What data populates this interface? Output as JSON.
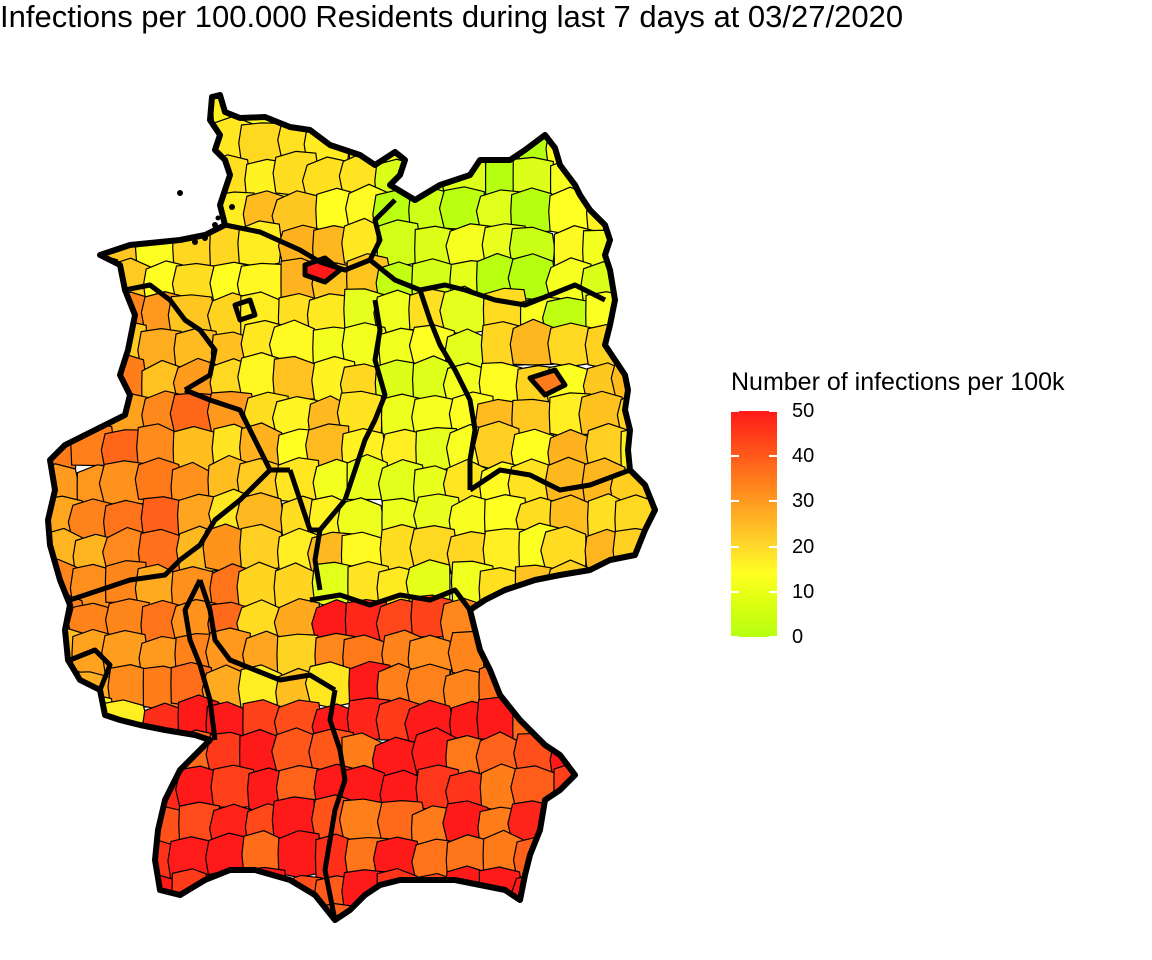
{
  "title": "Infections per 100.000 Residents during last 7 days at 03/27/2020",
  "legend": {
    "title": "Number of infections per 100k",
    "ticks": [
      {
        "label": "50",
        "value": 50
      },
      {
        "label": "40",
        "value": 40
      },
      {
        "label": "30",
        "value": 30
      },
      {
        "label": "20",
        "value": 20
      },
      {
        "label": "10",
        "value": 10
      },
      {
        "label": "0",
        "value": 0
      }
    ],
    "range": [
      0,
      50
    ],
    "colors": {
      "high": "#ff1a1a",
      "mid_high": "#ff7a1a",
      "mid": "#ffb020",
      "mid_low": "#ffff22",
      "low": "#b7ff10"
    }
  },
  "map": {
    "country": "Germany",
    "border_color": "#000000"
  }
}
